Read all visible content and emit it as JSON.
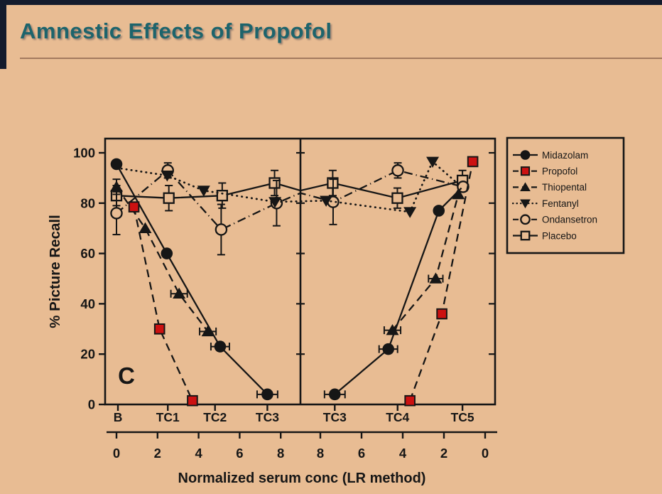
{
  "slide": {
    "title": "Amnestic Effects of Propofol",
    "panel_letter": "C"
  },
  "colors": {
    "background": "#e8bc93",
    "title": "#1d646c",
    "ink": "#161616",
    "propofol_red": "#cc1111",
    "edge_dark": "#131b2d",
    "title_rule": "#a37a5f"
  },
  "chart_data": {
    "type": "line",
    "title": "",
    "xlabel": "Normalized serum conc (LR method)",
    "ylabel": "% Picture Recall",
    "ylim": [
      0,
      105
    ],
    "yticks": [
      0,
      20,
      40,
      60,
      80,
      100
    ],
    "grid": false,
    "legend_position": "outside-right",
    "panel_label": "C",
    "panels": [
      {
        "name": "left",
        "tc_ticks": [
          {
            "label": "B",
            "c": 0.07
          },
          {
            "label": "TC1",
            "c": 2.5
          },
          {
            "label": "TC2",
            "c": 4.8
          },
          {
            "label": "TC3",
            "c": 7.35
          }
        ],
        "num_ticks": [
          {
            "label": "0",
            "c": 0
          },
          {
            "label": "2",
            "c": 2
          },
          {
            "label": "4",
            "c": 4
          },
          {
            "label": "6",
            "c": 6
          },
          {
            "label": "8",
            "c": 8
          }
        ]
      },
      {
        "name": "right",
        "tc_ticks": [
          {
            "label": "TC3",
            "c": 7.3
          },
          {
            "label": "TC4",
            "c": 4.25
          },
          {
            "label": "TC5",
            "c": 1.1
          }
        ],
        "num_ticks": [
          {
            "label": "8",
            "c": 8
          },
          {
            "label": "6",
            "c": 6
          },
          {
            "label": "4",
            "c": 4
          },
          {
            "label": "2",
            "c": 2
          },
          {
            "label": "0",
            "c": 0
          }
        ]
      }
    ],
    "series": [
      {
        "name": "Midazolam",
        "marker": "circle",
        "line": "solid",
        "bridge": false,
        "left": [
          {
            "c": 0,
            "v": 95.5
          },
          {
            "c": 2.45,
            "v": 60
          },
          {
            "c": 5.05,
            "v": 23,
            "xerr": 0.45
          },
          {
            "c": 7.35,
            "v": 4,
            "xerr": 0.5
          }
        ],
        "right": [
          {
            "c": 7.3,
            "v": 4,
            "xerr": 0.5
          },
          {
            "c": 4.7,
            "v": 22,
            "xerr": 0.45
          },
          {
            "c": 2.25,
            "v": 77
          },
          {
            "c": 1.15,
            "v": 86,
            "hidden": true
          }
        ]
      },
      {
        "name": "Propofol",
        "marker": "square",
        "line": "dashed",
        "color": "#cc1111",
        "bridge": false,
        "left": [
          {
            "c": 0.85,
            "v": 78.5
          },
          {
            "c": 2.1,
            "v": 30
          },
          {
            "c": 3.7,
            "v": 1.5
          }
        ],
        "right": [
          {
            "c": 3.65,
            "v": 1.5
          },
          {
            "c": 2.1,
            "v": 36
          },
          {
            "c": 0.6,
            "v": 96.5
          }
        ]
      },
      {
        "name": "Thiopental",
        "marker": "triangle-up",
        "line": "dashed",
        "bridge": false,
        "left": [
          {
            "c": 0,
            "v": 86.5,
            "yerr": 3
          },
          {
            "c": 1.4,
            "v": 70
          },
          {
            "c": 3.05,
            "v": 44,
            "xerr": 0.4
          },
          {
            "c": 4.45,
            "v": 29,
            "xerr": 0.4
          }
        ],
        "right": [
          {
            "c": 4.5,
            "v": 29.5,
            "xerr": 0.4
          },
          {
            "c": 2.4,
            "v": 50,
            "xerr": 0.35
          },
          {
            "c": 1.3,
            "v": 83.5
          }
        ]
      },
      {
        "name": "Fentanyl",
        "marker": "triangle-down",
        "line": "dotted",
        "bridge": true,
        "divider_v": null,
        "left": [
          {
            "c": 0,
            "v": 94,
            "hidden": true
          },
          {
            "c": 2.47,
            "v": 91
          },
          {
            "c": 4.25,
            "v": 85
          },
          {
            "c": 7.72,
            "v": 80.5
          }
        ],
        "right": [
          {
            "c": 7.72,
            "v": 81
          },
          {
            "c": 3.65,
            "v": 76.5
          },
          {
            "c": 2.55,
            "v": 96.5
          },
          {
            "c": 1.15,
            "v": 86.5,
            "hidden": true
          }
        ]
      },
      {
        "name": "Ondansetron",
        "marker": "circle-open",
        "line": "dashdot",
        "bridge": true,
        "divider_v": 84,
        "left": [
          {
            "c": 0,
            "v": 76,
            "yerr": 8.5
          },
          {
            "c": 2.5,
            "v": 93,
            "yerr": 3
          },
          {
            "c": 5.1,
            "v": 69.5,
            "yerr": 10
          },
          {
            "c": 7.8,
            "v": 80,
            "yerr": 9
          }
        ],
        "right": [
          {
            "c": 7.38,
            "v": 80.5,
            "yerr": 9
          },
          {
            "c": 4.24,
            "v": 93,
            "yerr": 3
          },
          {
            "c": 1.07,
            "v": 86.5
          }
        ]
      },
      {
        "name": "Placebo",
        "marker": "square-open",
        "line": "solid",
        "bridge": true,
        "divider_v": 85,
        "left": [
          {
            "c": 0,
            "v": 83,
            "yerr": 4
          },
          {
            "c": 2.55,
            "v": 82,
            "yerr": 5
          },
          {
            "c": 5.15,
            "v": 83,
            "yerr": 5
          },
          {
            "c": 7.7,
            "v": 88,
            "yerr": 5
          }
        ],
        "right": [
          {
            "c": 7.4,
            "v": 88,
            "yerr": 5
          },
          {
            "c": 4.26,
            "v": 82,
            "yerr": 4
          },
          {
            "c": 1.1,
            "v": 89,
            "yerr": 4
          }
        ]
      }
    ]
  }
}
